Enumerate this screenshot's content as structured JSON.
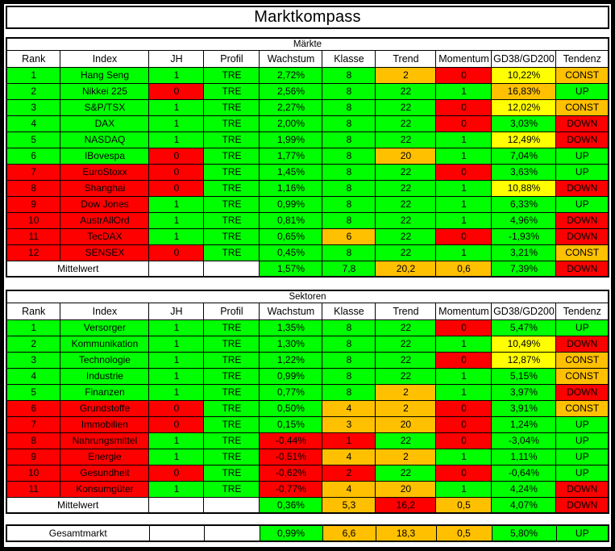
{
  "title": "Marktkompass",
  "palette": {
    "g": "#00ff00",
    "r": "#ff0000",
    "o": "#ffc000",
    "y": "#ffff00",
    "w": "#ffffff"
  },
  "columns": [
    "Rank",
    "Index",
    "JH",
    "Profil",
    "Wachstum",
    "Klasse",
    "Trend",
    "Momentum",
    "GD38/GD200",
    "Tendenz"
  ],
  "column_keys": [
    "rank",
    "index",
    "jh",
    "profil",
    "wachstum",
    "klasse",
    "trend",
    "momentum",
    "gd38-gd200",
    "tendenz"
  ],
  "sections": [
    {
      "label": "Märkte",
      "rows": [
        {
          "cells": [
            "1",
            "Hang Seng",
            "1",
            "TRE",
            "2,72%",
            "8",
            "2",
            "0",
            "10,22%",
            "CONST"
          ],
          "colors": "ggggggoryo"
        },
        {
          "cells": [
            "2",
            "Nikkei 225",
            "0",
            "TRE",
            "2,56%",
            "8",
            "22",
            "1",
            "16,83%",
            "UP"
          ],
          "colors": "ggrgggggog"
        },
        {
          "cells": [
            "3",
            "S&P/TSX",
            "1",
            "TRE",
            "2,27%",
            "8",
            "22",
            "0",
            "12,02%",
            "CONST"
          ],
          "colors": "gggggggryo"
        },
        {
          "cells": [
            "4",
            "DAX",
            "1",
            "TRE",
            "2,00%",
            "8",
            "22",
            "0",
            "3,03%",
            "DOWN"
          ],
          "colors": "gggggggrgr"
        },
        {
          "cells": [
            "5",
            "NASDAQ",
            "1",
            "TRE",
            "1,99%",
            "8",
            "22",
            "1",
            "12,49%",
            "DOWN"
          ],
          "colors": "ggggggggyr"
        },
        {
          "cells": [
            "6",
            "IBovespa",
            "0",
            "TRE",
            "1,77%",
            "8",
            "20",
            "1",
            "7,04%",
            "UP"
          ],
          "colors": "ggrgggoggg"
        },
        {
          "cells": [
            "7",
            "EuroStoxx",
            "0",
            "TRE",
            "1,45%",
            "8",
            "22",
            "0",
            "3,63%",
            "UP"
          ],
          "colors": "rrrggggrgg"
        },
        {
          "cells": [
            "8",
            "Shanghai",
            "0",
            "TRE",
            "1,16%",
            "8",
            "22",
            "1",
            "10,88%",
            "DOWN"
          ],
          "colors": "rrrgggggyr"
        },
        {
          "cells": [
            "9",
            "Dow Jones",
            "1",
            "TRE",
            "0,99%",
            "8",
            "22",
            "1",
            "6,33%",
            "UP"
          ],
          "colors": "rrgggggggg"
        },
        {
          "cells": [
            "10",
            "AustrAllOrd",
            "1",
            "TRE",
            "0,81%",
            "8",
            "22",
            "1",
            "4,96%",
            "DOWN"
          ],
          "colors": "rrgggggggr"
        },
        {
          "cells": [
            "11",
            "TecDAX",
            "1",
            "TRE",
            "0,65%",
            "6",
            "22",
            "0",
            "-1,93%",
            "DOWN"
          ],
          "colors": "rrgggogrgr"
        },
        {
          "cells": [
            "12",
            "SENSEX",
            "0",
            "TRE",
            "0,45%",
            "8",
            "22",
            "1",
            "3,21%",
            "CONST"
          ],
          "colors": "rrrggggggo"
        }
      ],
      "summary": {
        "cells": [
          "Mittelwert",
          "",
          "",
          "1,57%",
          "7,8",
          "20,2",
          "0,6",
          "7,39%",
          "DOWN"
        ],
        "colors": "wwwggoogr",
        "bold": [
          1,
          0,
          0,
          1,
          0,
          1,
          1,
          0,
          1
        ],
        "merge_first": 2
      }
    },
    {
      "label": "Sektoren",
      "rows": [
        {
          "cells": [
            "1",
            "Versorger",
            "1",
            "TRE",
            "1,35%",
            "8",
            "22",
            "0",
            "5,47%",
            "UP"
          ],
          "colors": "gggggggrgg"
        },
        {
          "cells": [
            "2",
            "Kommunikation",
            "1",
            "TRE",
            "1,30%",
            "8",
            "22",
            "1",
            "10,49%",
            "DOWN"
          ],
          "colors": "ggggggggyr"
        },
        {
          "cells": [
            "3",
            "Technologie",
            "1",
            "TRE",
            "1,22%",
            "8",
            "22",
            "0",
            "12,87%",
            "CONST"
          ],
          "colors": "gggggggryo"
        },
        {
          "cells": [
            "4",
            "Industrie",
            "1",
            "TRE",
            "0,99%",
            "8",
            "22",
            "1",
            "5,15%",
            "CONST"
          ],
          "colors": "gggggggggo"
        },
        {
          "cells": [
            "5",
            "Finanzen",
            "1",
            "TRE",
            "0,77%",
            "8",
            "2",
            "1",
            "3,97%",
            "DOWN"
          ],
          "colors": "ggggggoggr"
        },
        {
          "cells": [
            "6",
            "Grundstoffe",
            "0",
            "TRE",
            "0,50%",
            "4",
            "2",
            "0",
            "3,91%",
            "CONST"
          ],
          "colors": "rrrggoorgo"
        },
        {
          "cells": [
            "7",
            "Immobilien",
            "0",
            "TRE",
            "0,15%",
            "3",
            "20",
            "0",
            "1,24%",
            "UP"
          ],
          "colors": "rrrggoorgg"
        },
        {
          "cells": [
            "8",
            "Nahrungsmittel",
            "1",
            "TRE",
            "-0,44%",
            "1",
            "22",
            "0",
            "-3,04%",
            "UP"
          ],
          "colors": "rrggrrgrgg"
        },
        {
          "cells": [
            "9",
            "Energie",
            "1",
            "TRE",
            "-0,51%",
            "4",
            "2",
            "1",
            "1,11%",
            "UP"
          ],
          "colors": "rrggrooggg"
        },
        {
          "cells": [
            "10",
            "Gesundheit",
            "0",
            "TRE",
            "-0,62%",
            "2",
            "22",
            "0",
            "-0,64%",
            "UP"
          ],
          "colors": "rrrgrrgrgg"
        },
        {
          "cells": [
            "11",
            "Konsumgüter",
            "1",
            "TRE",
            "-0,77%",
            "4",
            "20",
            "1",
            "4,24%",
            "DOWN"
          ],
          "colors": "rrggrooggr"
        }
      ],
      "summary": {
        "cells": [
          "Mittelwert",
          "",
          "",
          "0,36%",
          "5,3",
          "16,2",
          "0,5",
          "4,07%",
          "DOWN"
        ],
        "colors": "wwwgorogr",
        "bold": [
          1,
          0,
          0,
          1,
          0,
          0,
          1,
          0,
          1
        ],
        "merge_first": 2
      }
    }
  ],
  "gesamtmarkt": {
    "cells": [
      "Gesamtmarkt",
      "",
      "",
      "0,99%",
      "6,6",
      "18,3",
      "0,5",
      "5,80%",
      "UP"
    ],
    "colors": "wwwgooogg",
    "bold": [
      1,
      0,
      0,
      1,
      0,
      0,
      1,
      1,
      1
    ],
    "merge_first": 2
  }
}
